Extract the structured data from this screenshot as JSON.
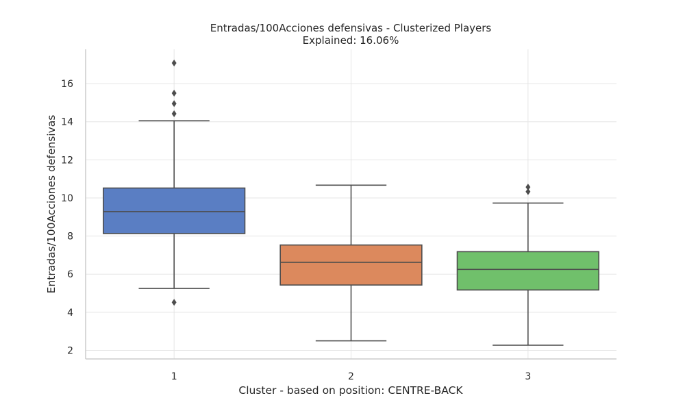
{
  "chart_data": {
    "type": "box",
    "title": "Entradas/100Acciones defensivas - Clusterized Players",
    "subtitle": "Explained: 16.06%",
    "xlabel": "Cluster - based on position: CENTRE-BACK",
    "ylabel": "Entradas/100Acciones defensivas",
    "ylim": [
      1.55,
      17.8
    ],
    "yticks": [
      2,
      4,
      6,
      8,
      10,
      12,
      14,
      16
    ],
    "grid": true,
    "categories": [
      "1",
      "2",
      "3"
    ],
    "boxes": [
      {
        "category": "1",
        "color": "#5a7ec3",
        "whisker_low": 5.25,
        "q1": 8.13,
        "median": 9.28,
        "q3": 10.52,
        "whisker_high": 14.05,
        "outliers": [
          4.52,
          14.42,
          14.95,
          15.5,
          17.08
        ]
      },
      {
        "category": "2",
        "color": "#dc895d",
        "whisker_low": 2.5,
        "q1": 5.43,
        "median": 6.62,
        "q3": 7.53,
        "whisker_high": 10.67,
        "outliers": []
      },
      {
        "category": "3",
        "color": "#70c06b",
        "whisker_low": 2.27,
        "q1": 5.17,
        "median": 6.25,
        "q3": 7.18,
        "whisker_high": 9.73,
        "outliers": [
          10.33,
          10.57
        ]
      }
    ]
  }
}
